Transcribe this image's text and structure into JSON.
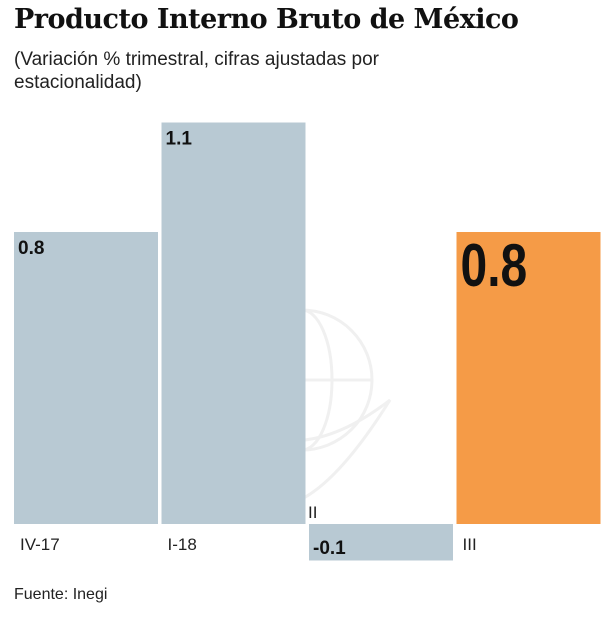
{
  "chart_data": {
    "type": "bar",
    "title": "Producto Interno Bruto de México",
    "subtitle": "(Variación % trimestral, cifras ajustadas por estacionalidad)",
    "categories": [
      "IV-17",
      "I-18",
      "II",
      "III"
    ],
    "values": [
      0.8,
      1.1,
      -0.1,
      0.8
    ],
    "data_labels": [
      "0.8",
      "1.1",
      "-0.1",
      "0.8"
    ],
    "colors": [
      "#b8c9d3",
      "#b8c9d3",
      "#b8c9d3",
      "#f59b47"
    ],
    "highlight_index": 3,
    "xlabel": "",
    "ylabel": "",
    "grid": false,
    "source": "Fuente: Inegi"
  }
}
